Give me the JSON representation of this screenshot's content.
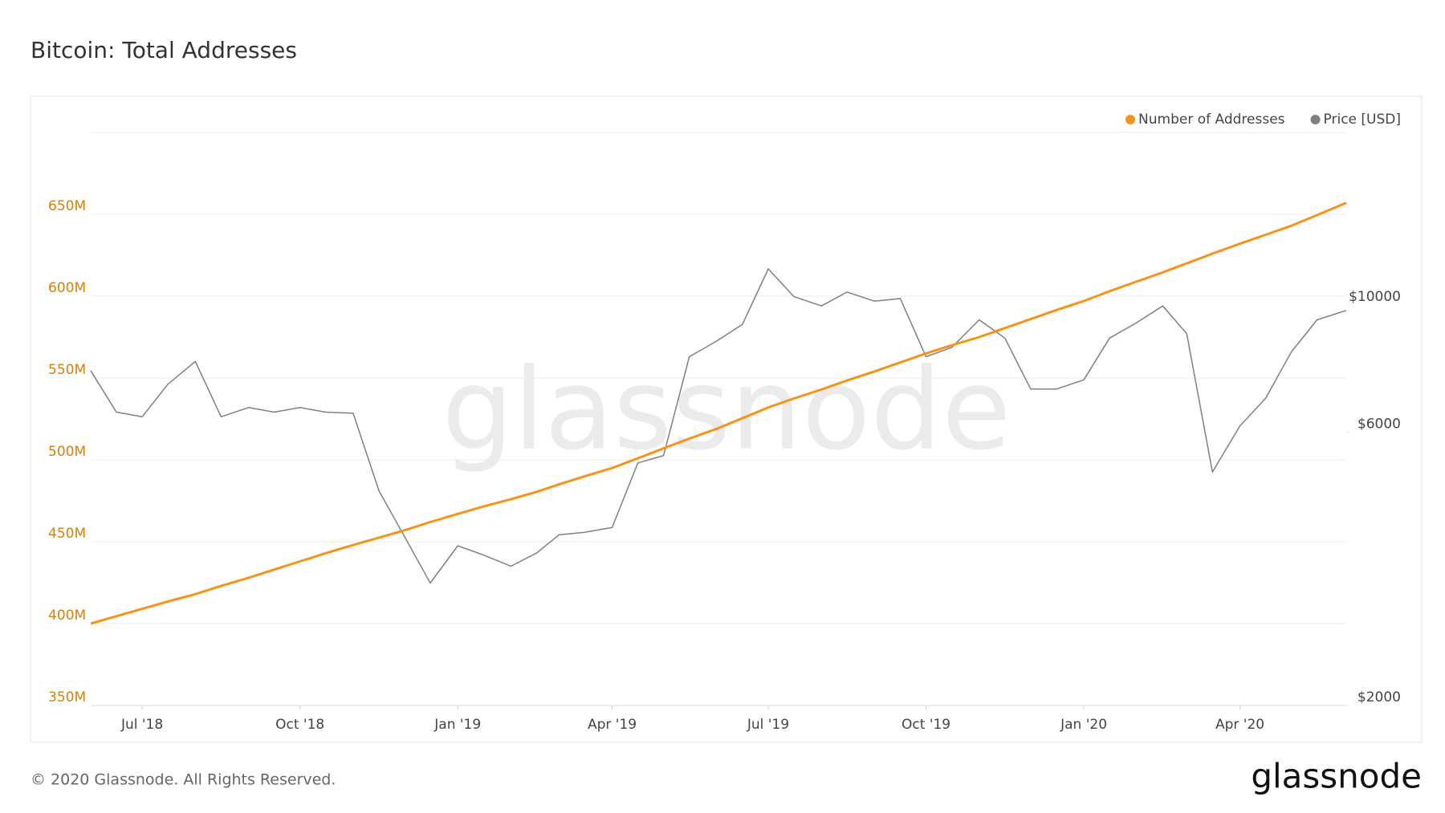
{
  "chart_data": {
    "type": "line",
    "title": "Bitcoin: Total Addresses",
    "x": [
      "2018-06-01",
      "2018-06-16",
      "2018-07-01",
      "2018-07-16",
      "2018-08-01",
      "2018-08-16",
      "2018-09-01",
      "2018-09-16",
      "2018-10-01",
      "2018-10-16",
      "2018-11-01",
      "2018-11-16",
      "2018-12-01",
      "2018-12-16",
      "2019-01-01",
      "2019-01-16",
      "2019-02-01",
      "2019-02-16",
      "2019-03-01",
      "2019-03-16",
      "2019-04-01",
      "2019-04-16",
      "2019-05-01",
      "2019-05-16",
      "2019-06-01",
      "2019-06-16",
      "2019-07-01",
      "2019-07-16",
      "2019-08-01",
      "2019-08-16",
      "2019-09-01",
      "2019-09-16",
      "2019-10-01",
      "2019-10-16",
      "2019-11-01",
      "2019-11-16",
      "2019-12-01",
      "2019-12-16",
      "2020-01-01",
      "2020-01-16",
      "2020-02-01",
      "2020-02-16",
      "2020-03-01",
      "2020-03-16",
      "2020-04-01",
      "2020-04-16",
      "2020-05-01",
      "2020-05-16",
      "2020-06-02"
    ],
    "series": [
      {
        "name": "Number of Addresses",
        "color": "#f7931a",
        "axis": "y",
        "values": [
          400000000,
          404500000,
          409000000,
          413500000,
          418000000,
          423000000,
          428000000,
          433000000,
          438000000,
          443000000,
          448000000,
          452500000,
          457000000,
          462000000,
          467000000,
          471500000,
          476000000,
          480500000,
          485000000,
          490000000,
          495000000,
          501000000,
          507000000,
          513000000,
          519000000,
          525500000,
          532000000,
          537500000,
          543000000,
          548500000,
          554000000,
          559500000,
          565000000,
          570000000,
          575000000,
          580500000,
          586000000,
          591500000,
          597000000,
          603000000,
          609000000,
          614500000,
          620000000,
          626000000,
          632000000,
          637500000,
          643000000,
          649500000,
          657000000
        ]
      },
      {
        "name": "Price [USD]",
        "color": "#808080",
        "axis": "y2",
        "values": [
          7680,
          6500,
          6380,
          7270,
          7970,
          6380,
          6620,
          6500,
          6620,
          6500,
          6470,
          4740,
          3940,
          3270,
          3800,
          3660,
          3500,
          3690,
          3970,
          4010,
          4090,
          5300,
          5460,
          8120,
          8650,
          9250,
          11560,
          10340,
          9960,
          10530,
          10150,
          10260,
          8120,
          8430,
          9420,
          8750,
          7130,
          7130,
          7400,
          8750,
          9320,
          9960,
          8910,
          5110,
          6150,
          6870,
          8280,
          9420,
          9780
        ]
      }
    ],
    "xlim": [
      "2018-06-01",
      "2020-06-02"
    ],
    "xticks": [
      {
        "value": "2018-07-01",
        "label": "Jul '18"
      },
      {
        "value": "2018-10-01",
        "label": "Oct '18"
      },
      {
        "value": "2019-01-01",
        "label": "Jan '19"
      },
      {
        "value": "2019-04-01",
        "label": "Apr '19"
      },
      {
        "value": "2019-07-01",
        "label": "Jul '19"
      },
      {
        "value": "2019-10-01",
        "label": "Oct '19"
      },
      {
        "value": "2020-01-01",
        "label": "Jan '20"
      },
      {
        "value": "2020-04-01",
        "label": "Apr '20"
      }
    ],
    "ylim": [
      350000000,
      700000000
    ],
    "yticks": [
      {
        "value": 350000000,
        "label": "350M"
      },
      {
        "value": 400000000,
        "label": "400M"
      },
      {
        "value": 450000000,
        "label": "450M"
      },
      {
        "value": 500000000,
        "label": "500M"
      },
      {
        "value": 550000000,
        "label": "550M"
      },
      {
        "value": 600000000,
        "label": "600M"
      },
      {
        "value": 650000000,
        "label": "650M"
      },
      700000000
    ],
    "y2lim": [
      2000,
      20000
    ],
    "y2scale": "log",
    "y2ticks": [
      {
        "value": 2000,
        "label": "$2000"
      },
      {
        "value": 6000,
        "label": "$6000"
      },
      {
        "value": 10000,
        "label": "$10000"
      }
    ],
    "ytick_color": "#d4820f",
    "grid": true,
    "legend": "top-right"
  },
  "brand": "glassnode",
  "copyright": "© 2020 Glassnode. All Rights Reserved."
}
